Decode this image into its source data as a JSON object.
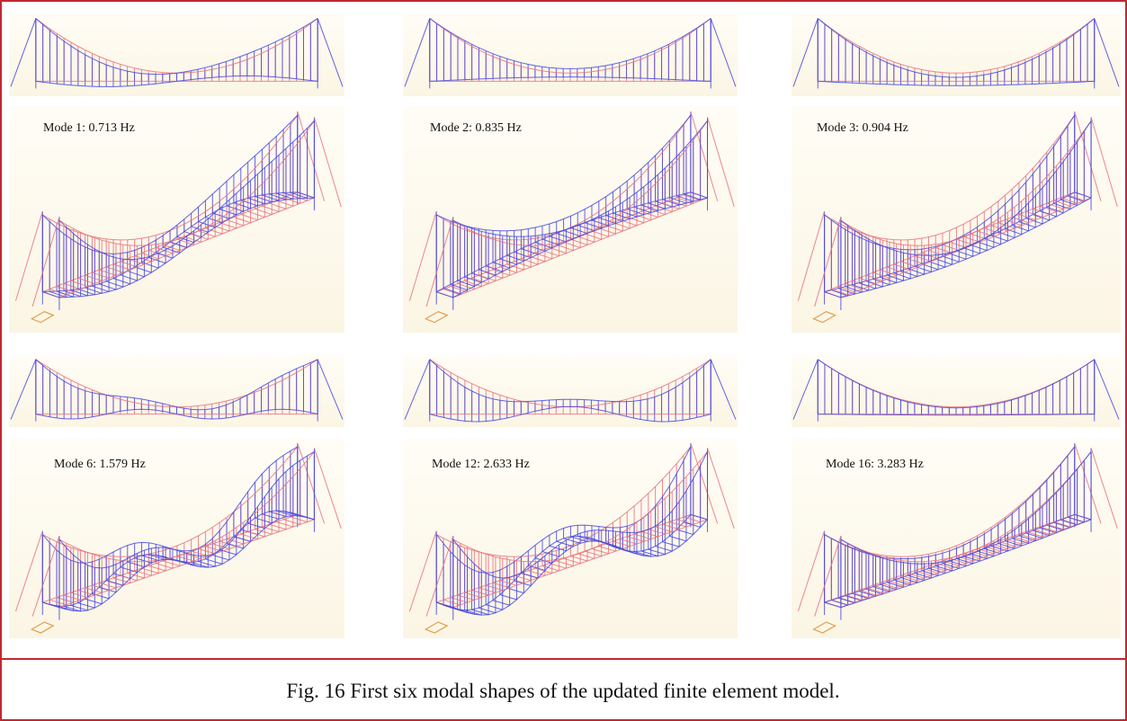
{
  "figures": [
    {
      "label": "Mode 1: 0.713  Hz"
    },
    {
      "label": "Mode 2: 0.835  Hz"
    },
    {
      "label": "Mode 3: 0.904  Hz"
    },
    {
      "label": "Mode 6:  1.579  Hz"
    },
    {
      "label": "Mode 12:  2.633  Hz"
    },
    {
      "label": "Mode 16:  3.283  Hz"
    }
  ],
  "caption": "Fig. 16 First six modal shapes of the updated finite element model."
}
